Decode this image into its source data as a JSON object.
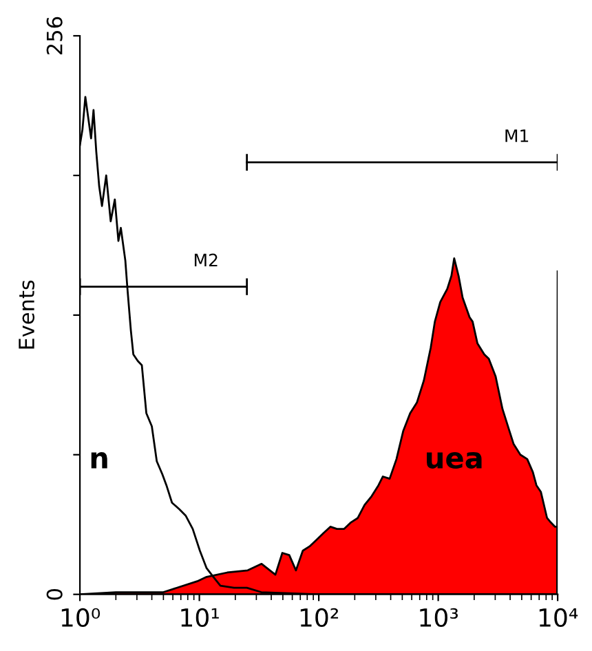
{
  "chart_data": {
    "type": "area",
    "ylabel": "Events",
    "log": "x",
    "xlim": [
      1,
      10000
    ],
    "xticks": [
      {
        "value": 1,
        "label": "10⁰"
      },
      {
        "value": 10,
        "label": "10¹"
      },
      {
        "value": 100,
        "label": "10²"
      },
      {
        "value": 1000,
        "label": "10³"
      },
      {
        "value": 10000,
        "label": "10⁴"
      }
    ],
    "ylim": [
      0,
      256
    ],
    "yticks": [
      0,
      {
        "value": 64,
        "label": null
      },
      {
        "value": 128,
        "label": null
      },
      {
        "value": 192,
        "label": null
      },
      256
    ],
    "grid": false,
    "series": [
      {
        "name": "uea",
        "color": "#ff0000",
        "x": [
          1,
          2,
          5,
          9.6,
          11.5,
          17.1,
          25.4,
          33.2,
          43.3,
          49.5,
          56.6,
          64.4,
          73.5,
          83.8,
          95.7,
          109,
          125,
          142,
          163,
          186,
          212,
          242,
          277,
          316,
          344,
          392,
          447,
          510,
          582,
          664,
          758,
          865,
          937,
          1040,
          1190,
          1290,
          1360,
          1480,
          1600,
          1830,
          1940,
          2130,
          2430,
          2650,
          3020,
          3450,
          3940,
          4270,
          4870,
          5560,
          6200,
          6640,
          7230,
          8150,
          8750,
          9500,
          10000
        ],
        "values": [
          0,
          1,
          1,
          6,
          8,
          10,
          11,
          14,
          9,
          19,
          18,
          11,
          20,
          22,
          25,
          28,
          31,
          30,
          30,
          33,
          35,
          41,
          45,
          50,
          54,
          53,
          62,
          75,
          83,
          88,
          98,
          113,
          125,
          134,
          140,
          146,
          154,
          146,
          136,
          127,
          125,
          115,
          110,
          108,
          100,
          85,
          75,
          69,
          64,
          62,
          56,
          50,
          47,
          35,
          33,
          31,
          31
        ]
      },
      {
        "name": "n",
        "type": "line",
        "color": "#000000",
        "x": [
          1,
          1.05,
          1.11,
          1.17,
          1.24,
          1.3,
          1.37,
          1.45,
          1.53,
          1.66,
          1.81,
          1.96,
          2.1,
          2.2,
          2.4,
          2.5,
          2.67,
          2.8,
          3.05,
          3.3,
          3.6,
          4.0,
          4.4,
          4.9,
          5.3,
          5.9,
          6.8,
          7.7,
          8.8,
          10.1,
          11.5,
          13.1,
          15,
          19.5,
          25,
          33,
          96,
          9900,
          10000
        ],
        "values": [
          206,
          213,
          228,
          219,
          209,
          222,
          203,
          187,
          178,
          192,
          171,
          181,
          162,
          168,
          153,
          140,
          121,
          110,
          107,
          105,
          83,
          77,
          61,
          55,
          50,
          42,
          39,
          36,
          30,
          20,
          12,
          8,
          4,
          3,
          3,
          1,
          0,
          0,
          148
        ]
      },
      {
        "name": "M2",
        "type": "line",
        "color": "#000000",
        "x": [
          1,
          25
        ],
        "values": [
          141,
          141
        ]
      },
      {
        "name": "M1",
        "type": "line",
        "color": "#000000",
        "x": [
          25,
          10000
        ],
        "values": [
          198,
          198
        ]
      }
    ]
  }
}
